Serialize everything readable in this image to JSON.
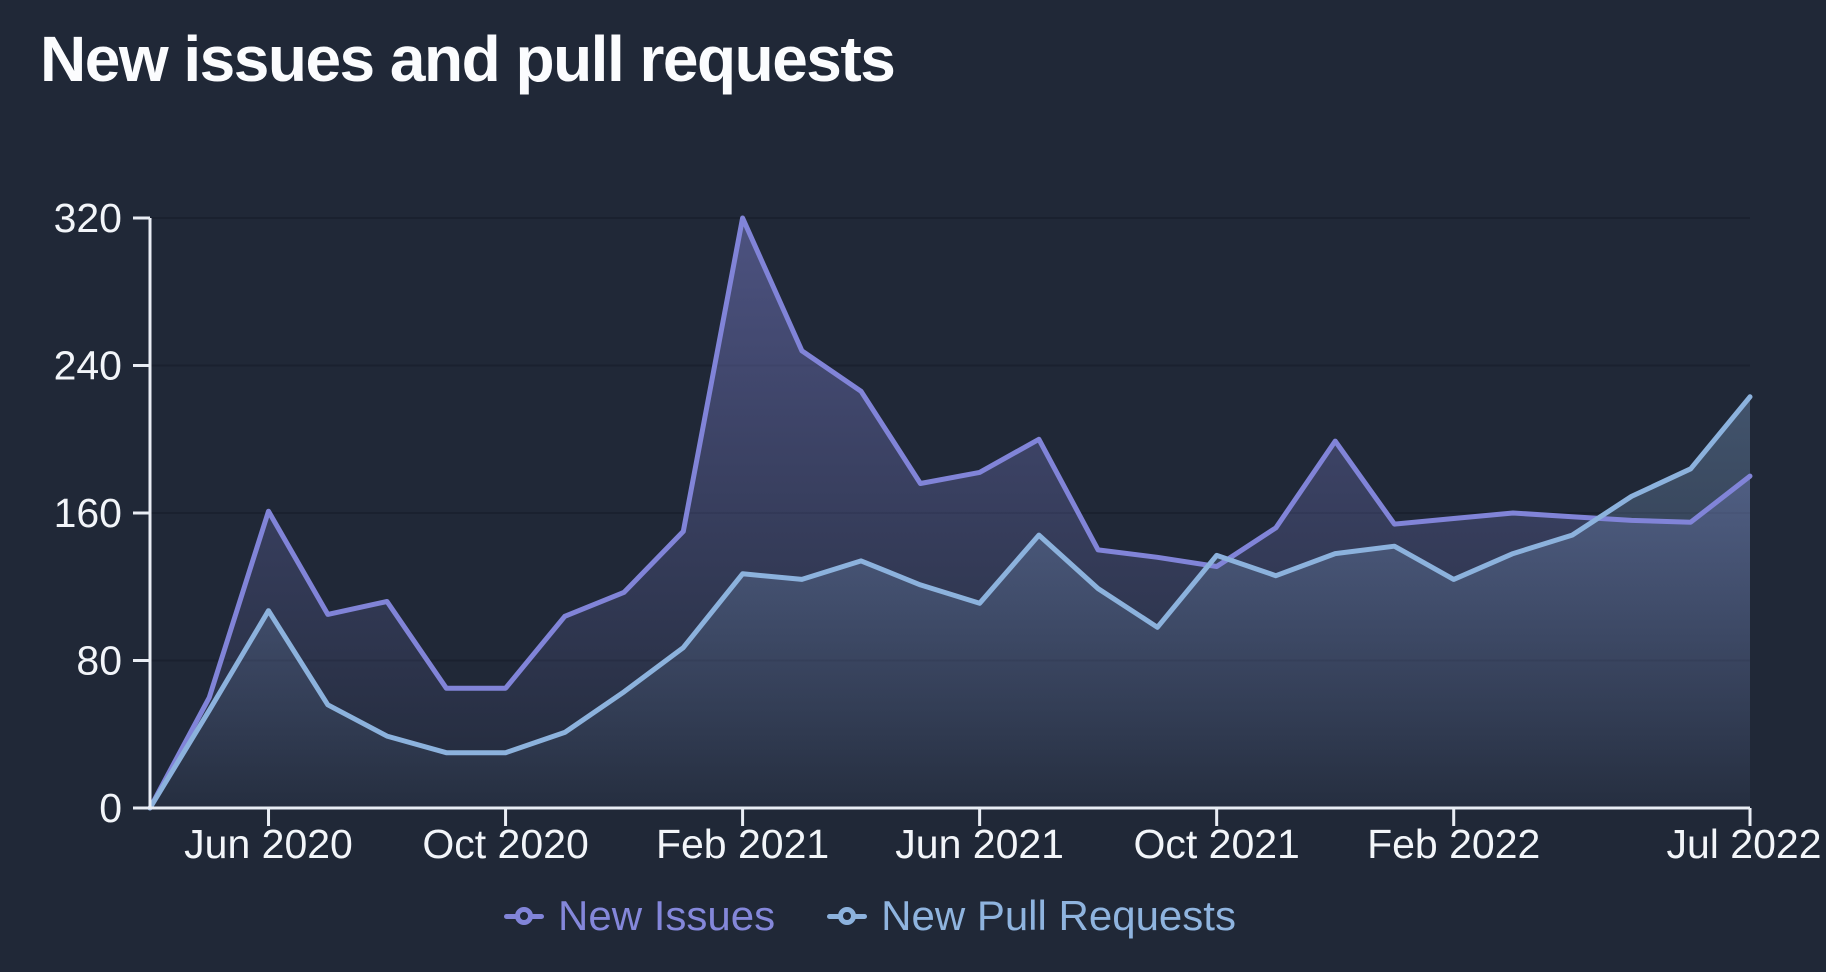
{
  "header": {
    "title": "New issues and pull requests"
  },
  "colors": {
    "background": "#202837",
    "text": "#F2F5F9",
    "axis": "#E9EDF4",
    "gridline": "#1A212F",
    "issues_line": "#8184D8",
    "issues_fill_top": "rgba(129,132,214,0.46)",
    "issues_fill_bottom": "rgba(129,132,214,0.02)",
    "pr_line": "#8CB2DD",
    "pr_fill_top": "rgba(140,178,224,0.44)",
    "pr_fill_bottom": "rgba(140,178,224,0.03)",
    "issues_legend_text": "#8487DA",
    "pr_legend_text": "#8FB4DF"
  },
  "chart_data": {
    "type": "area",
    "title": "New issues and pull requests",
    "xlabel": "",
    "ylabel": "",
    "ylim": [
      0,
      320
    ],
    "y_ticks": [
      0,
      80,
      160,
      240,
      320
    ],
    "grid": "horizontal",
    "legend_position": "bottom",
    "x": [
      "Apr 2020",
      "May 2020",
      "Jun 2020",
      "Jul 2020",
      "Aug 2020",
      "Sep 2020",
      "Oct 2020",
      "Nov 2020",
      "Dec 2020",
      "Jan 2021",
      "Feb 2021",
      "Mar 2021",
      "Apr 2021",
      "May 2021",
      "Jun 2021",
      "Jul 2021",
      "Aug 2021",
      "Sep 2021",
      "Oct 2021",
      "Nov 2021",
      "Dec 2021",
      "Jan 2022",
      "Feb 2022",
      "Mar 2022",
      "Apr 2022",
      "May 2022",
      "Jun 2022",
      "Jul 2022"
    ],
    "x_tick_indices": [
      2,
      6,
      10,
      14,
      18,
      22,
      27
    ],
    "x_tick_labels": [
      "Jun 2020",
      "Oct 2020",
      "Feb 2021",
      "Jun 2021",
      "Oct 2021",
      "Feb 2022",
      "Jul 2022"
    ],
    "series": [
      {
        "name": "New Issues",
        "color": "#8184D8",
        "values": [
          0,
          60,
          161,
          105,
          112,
          65,
          65,
          104,
          117,
          150,
          320,
          248,
          226,
          176,
          182,
          200,
          140,
          136,
          131,
          152,
          199,
          154,
          157,
          160,
          158,
          156,
          155,
          180
        ]
      },
      {
        "name": "New Pull Requests",
        "color": "#8CB2DD",
        "values": [
          0,
          53,
          107,
          56,
          39,
          30,
          30,
          41,
          63,
          87,
          127,
          124,
          134,
          121,
          111,
          148,
          119,
          98,
          137,
          126,
          138,
          142,
          124,
          138,
          148,
          169,
          184,
          223
        ]
      }
    ]
  }
}
